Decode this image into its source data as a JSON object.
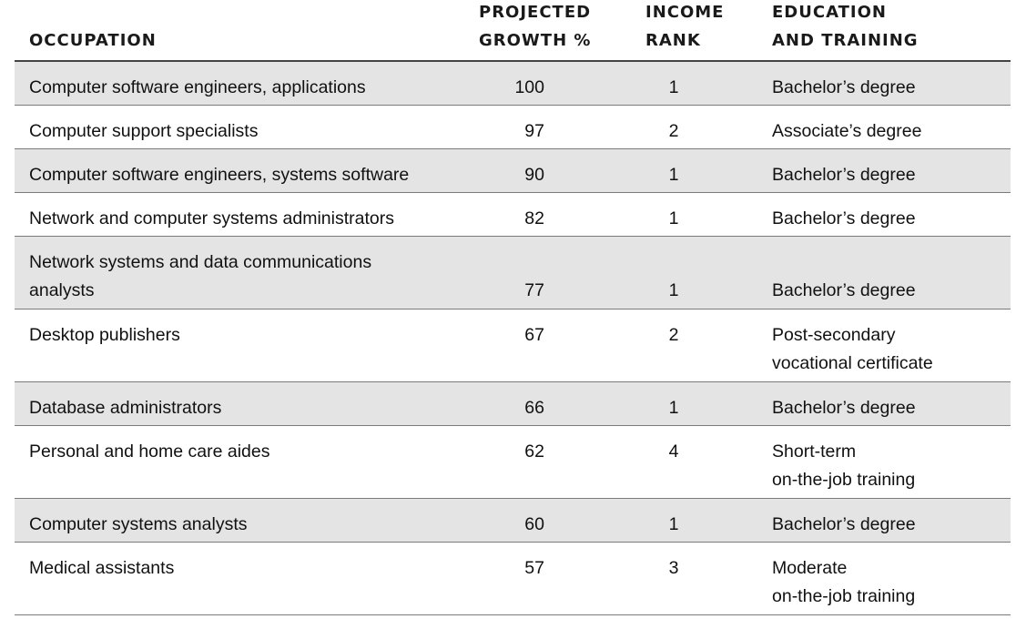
{
  "table": {
    "headers": {
      "occupation": "OCCUPATION",
      "growth": "PROJECTED\nGROWTH %",
      "income": "INCOME\nRANK",
      "education": "EDUCATION\nAND TRAINING"
    },
    "rows": [
      {
        "occupation": "Computer software engineers, applications",
        "growth": "100",
        "income": "1",
        "education": "Bachelor’s degree"
      },
      {
        "occupation": "Computer support specialists",
        "growth": "97",
        "income": "2",
        "education": "Associate’s degree"
      },
      {
        "occupation": "Computer software engineers, systems software",
        "growth": "90",
        "income": "1",
        "education": "Bachelor’s degree"
      },
      {
        "occupation": "Network and computer systems administrators",
        "growth": "82",
        "income": "1",
        "education": "Bachelor’s degree"
      },
      {
        "occupation": "Network systems and data communications\nanalysts",
        "growth": "77",
        "income": "1",
        "education": "Bachelor’s degree"
      },
      {
        "occupation": "Desktop publishers",
        "growth": "67",
        "income": "2",
        "education": "Post-secondary\nvocational certificate"
      },
      {
        "occupation": "Database administrators",
        "growth": "66",
        "income": "1",
        "education": "Bachelor’s degree"
      },
      {
        "occupation": "Personal and home care aides",
        "growth": "62",
        "income": "4",
        "education": "Short-term\non-the-job training"
      },
      {
        "occupation": "Computer systems analysts",
        "growth": "60",
        "income": "1",
        "education": "Bachelor’s degree"
      },
      {
        "occupation": "Medical assistants",
        "growth": "57",
        "income": "3",
        "education": "Moderate\non-the-job training"
      }
    ]
  },
  "colors": {
    "shaded_row": "#e4e4e4",
    "rule": "#7a7a7a",
    "text": "#111111"
  }
}
